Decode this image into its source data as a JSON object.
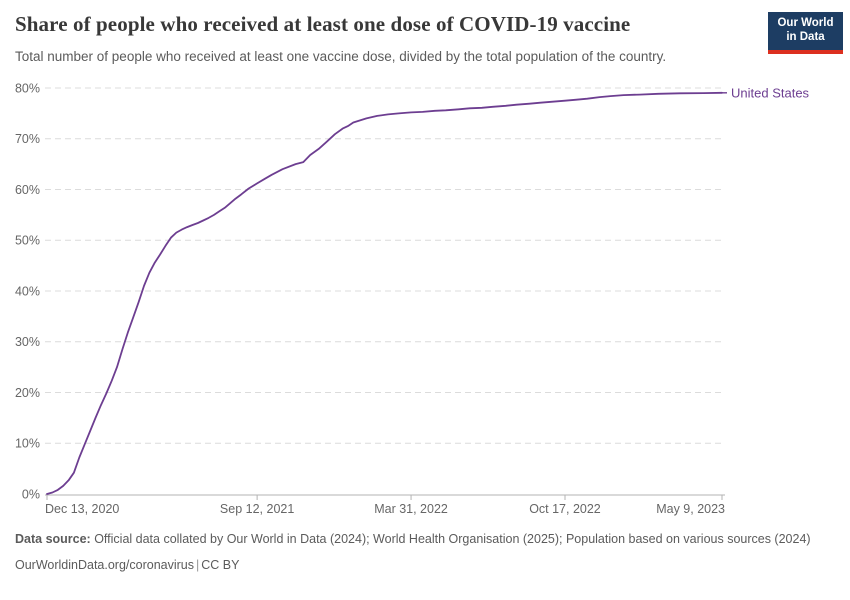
{
  "header": {
    "title": "Share of people who received at least one dose of COVID-19 vaccine",
    "subtitle": "Total number of people who received at least one vaccine dose, divided by the total population of the country."
  },
  "logo": {
    "line1": "Our World",
    "line2": "in Data",
    "bg_color": "#1d3d63",
    "accent_color": "#dc2f1f"
  },
  "footer": {
    "source_label": "Data source:",
    "source_text": " Official data collated by Our World in Data (2024); World Health Organisation (2025); Population based on various sources (2024)",
    "link": "OurWorldinData.org/coronavirus",
    "separator": "|",
    "license": "CC BY"
  },
  "chart_data": {
    "type": "line",
    "title": "Share of people who received at least one dose of COVID-19 vaccine",
    "xlabel": "",
    "ylabel": "",
    "ylim": [
      0,
      80
    ],
    "grid": "horizontal-dashed",
    "legend_position": "end-of-line",
    "x_range": [
      "2020-12-13",
      "2023-05-09"
    ],
    "x_ticks": [
      {
        "label": "Dec 13, 2020",
        "date": "2020-12-13"
      },
      {
        "label": "Sep 12, 2021",
        "date": "2021-09-12"
      },
      {
        "label": "Mar 31, 2022",
        "date": "2022-03-31"
      },
      {
        "label": "Oct 17, 2022",
        "date": "2022-10-17"
      },
      {
        "label": "May 9, 2023",
        "date": "2023-05-09"
      }
    ],
    "y_ticks": [
      {
        "label": "0%",
        "value": 0
      },
      {
        "label": "10%",
        "value": 10
      },
      {
        "label": "20%",
        "value": 20
      },
      {
        "label": "30%",
        "value": 30
      },
      {
        "label": "40%",
        "value": 40
      },
      {
        "label": "50%",
        "value": 50
      },
      {
        "label": "60%",
        "value": 60
      },
      {
        "label": "70%",
        "value": 70
      },
      {
        "label": "80%",
        "value": 80
      }
    ],
    "series": [
      {
        "name": "United States",
        "color": "#6D3E91",
        "points": [
          [
            "2020-12-13",
            0
          ],
          [
            "2020-12-20",
            0.3
          ],
          [
            "2020-12-27",
            0.8
          ],
          [
            "2021-01-03",
            1.6
          ],
          [
            "2021-01-10",
            2.7
          ],
          [
            "2021-01-17",
            4.2
          ],
          [
            "2021-01-24",
            7.2
          ],
          [
            "2021-01-31",
            9.8
          ],
          [
            "2021-02-07",
            12.4
          ],
          [
            "2021-02-14",
            15.0
          ],
          [
            "2021-02-21",
            17.5
          ],
          [
            "2021-02-28",
            19.8
          ],
          [
            "2021-03-07",
            22.3
          ],
          [
            "2021-03-14",
            25.0
          ],
          [
            "2021-03-21",
            28.5
          ],
          [
            "2021-03-28",
            31.8
          ],
          [
            "2021-04-04",
            34.8
          ],
          [
            "2021-04-11",
            37.8
          ],
          [
            "2021-04-18",
            41.0
          ],
          [
            "2021-04-25",
            43.6
          ],
          [
            "2021-05-02",
            45.6
          ],
          [
            "2021-05-09",
            47.2
          ],
          [
            "2021-05-16",
            48.9
          ],
          [
            "2021-05-23",
            50.5
          ],
          [
            "2021-05-30",
            51.5
          ],
          [
            "2021-06-06",
            52.1
          ],
          [
            "2021-06-13",
            52.6
          ],
          [
            "2021-06-20",
            53.0
          ],
          [
            "2021-06-27",
            53.4
          ],
          [
            "2021-07-04",
            53.9
          ],
          [
            "2021-07-11",
            54.4
          ],
          [
            "2021-07-18",
            55.0
          ],
          [
            "2021-07-25",
            55.7
          ],
          [
            "2021-08-01",
            56.4
          ],
          [
            "2021-08-08",
            57.3
          ],
          [
            "2021-08-15",
            58.2
          ],
          [
            "2021-08-22",
            59.0
          ],
          [
            "2021-09-01",
            60.2
          ],
          [
            "2021-09-12",
            61.2
          ],
          [
            "2021-09-22",
            62.1
          ],
          [
            "2021-10-01",
            62.9
          ],
          [
            "2021-10-15",
            64.0
          ],
          [
            "2021-11-01",
            65.0
          ],
          [
            "2021-11-11",
            65.4
          ],
          [
            "2021-11-20",
            66.8
          ],
          [
            "2021-12-01",
            68.0
          ],
          [
            "2021-12-12",
            69.5
          ],
          [
            "2021-12-22",
            70.9
          ],
          [
            "2022-01-01",
            72.0
          ],
          [
            "2022-01-08",
            72.5
          ],
          [
            "2022-01-15",
            73.2
          ],
          [
            "2022-02-01",
            74.0
          ],
          [
            "2022-02-15",
            74.5
          ],
          [
            "2022-03-01",
            74.8
          ],
          [
            "2022-03-15",
            75.0
          ],
          [
            "2022-03-31",
            75.2
          ],
          [
            "2022-04-15",
            75.3
          ],
          [
            "2022-05-01",
            75.5
          ],
          [
            "2022-05-15",
            75.6
          ],
          [
            "2022-06-01",
            75.8
          ],
          [
            "2022-06-15",
            76.0
          ],
          [
            "2022-07-01",
            76.1
          ],
          [
            "2022-07-15",
            76.3
          ],
          [
            "2022-08-01",
            76.5
          ],
          [
            "2022-08-15",
            76.7
          ],
          [
            "2022-09-01",
            76.9
          ],
          [
            "2022-09-15",
            77.1
          ],
          [
            "2022-10-01",
            77.3
          ],
          [
            "2022-10-17",
            77.5
          ],
          [
            "2022-11-01",
            77.7
          ],
          [
            "2022-11-15",
            77.9
          ],
          [
            "2022-12-01",
            78.2
          ],
          [
            "2022-12-15",
            78.4
          ],
          [
            "2023-01-01",
            78.6
          ],
          [
            "2023-01-22",
            78.7
          ],
          [
            "2023-02-15",
            78.85
          ],
          [
            "2023-03-15",
            78.95
          ],
          [
            "2023-04-15",
            79.0
          ],
          [
            "2023-05-09",
            79.05
          ]
        ]
      }
    ]
  },
  "colors": {
    "grid": "#dcdcdc",
    "axis": "#b3b3b3",
    "axis_text": "#666666",
    "title_text": "#383838",
    "subtitle_text": "#5b5b5b",
    "footer_text": "#5b5b5b"
  }
}
